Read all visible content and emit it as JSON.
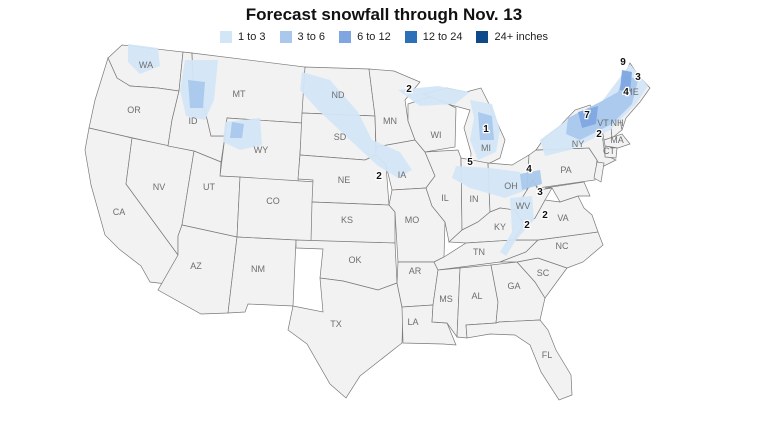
{
  "title": "Forecast snowfall through Nov. 13",
  "legend": [
    {
      "label": "1 to 3",
      "color": "#d3e6f7"
    },
    {
      "label": "3 to 6",
      "color": "#a9c8ec"
    },
    {
      "label": "6 to 12",
      "color": "#7fa6e0"
    },
    {
      "label": "12 to 24",
      "color": "#2d70b8"
    },
    {
      "label": "24+ inches",
      "color": "#0e4a8a"
    }
  ],
  "states": [
    {
      "abbr": "WA"
    },
    {
      "abbr": "OR"
    },
    {
      "abbr": "CA"
    },
    {
      "abbr": "NV"
    },
    {
      "abbr": "ID"
    },
    {
      "abbr": "MT"
    },
    {
      "abbr": "WY"
    },
    {
      "abbr": "UT"
    },
    {
      "abbr": "AZ"
    },
    {
      "abbr": "CO"
    },
    {
      "abbr": "NM"
    },
    {
      "abbr": "ND"
    },
    {
      "abbr": "SD"
    },
    {
      "abbr": "NE"
    },
    {
      "abbr": "KS"
    },
    {
      "abbr": "OK"
    },
    {
      "abbr": "TX"
    },
    {
      "abbr": "MN"
    },
    {
      "abbr": "IA"
    },
    {
      "abbr": "MO"
    },
    {
      "abbr": "AR"
    },
    {
      "abbr": "LA"
    },
    {
      "abbr": "WI"
    },
    {
      "abbr": "IL"
    },
    {
      "abbr": "MI"
    },
    {
      "abbr": "IN"
    },
    {
      "abbr": "OH"
    },
    {
      "abbr": "KY"
    },
    {
      "abbr": "TN"
    },
    {
      "abbr": "MS"
    },
    {
      "abbr": "AL"
    },
    {
      "abbr": "GA"
    },
    {
      "abbr": "FL"
    },
    {
      "abbr": "SC"
    },
    {
      "abbr": "NC"
    },
    {
      "abbr": "VA"
    },
    {
      "abbr": "WV"
    },
    {
      "abbr": "PA"
    },
    {
      "abbr": "NY"
    },
    {
      "abbr": "VT"
    },
    {
      "abbr": "NH"
    },
    {
      "abbr": "ME"
    },
    {
      "abbr": "MA"
    },
    {
      "abbr": "CT"
    }
  ],
  "snowfall_labels": [
    "9",
    "3",
    "4",
    "7",
    "2",
    "2",
    "1",
    "5",
    "4",
    "2",
    "3",
    "2",
    "2"
  ]
}
